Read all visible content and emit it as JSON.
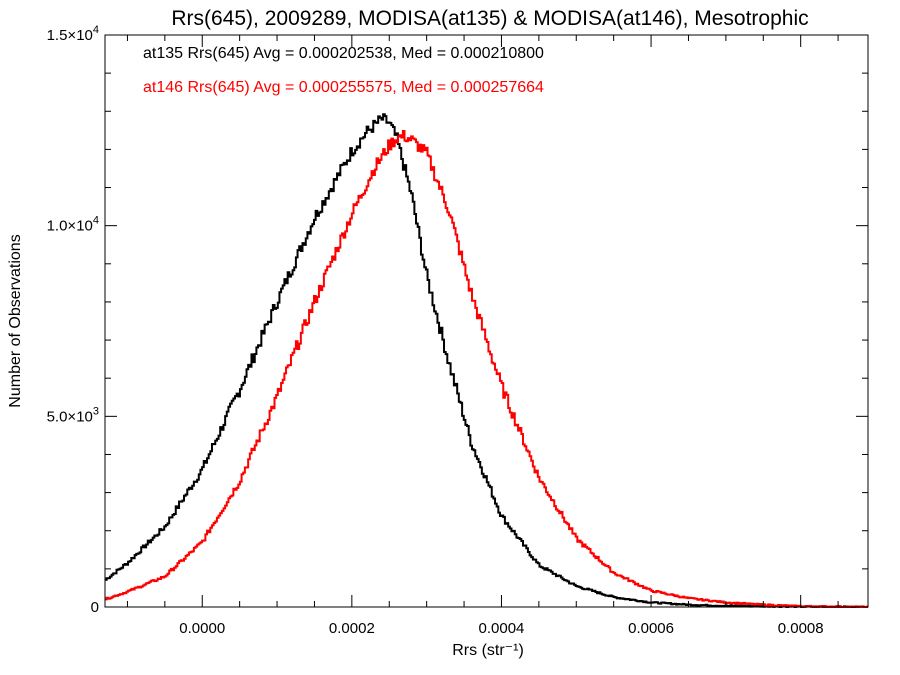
{
  "chart_data": {
    "type": "line",
    "step": true,
    "title": "Rrs(645), 2009289, MODISA(at135) & MODISA(at146), Mesotrophic",
    "xlabel": "Rrs (str⁻¹)",
    "ylabel": "Number of Observations",
    "xlim": [
      -0.00013,
      0.00089
    ],
    "ylim": [
      0,
      15000
    ],
    "x_ticks": [
      0.0,
      0.0002,
      0.0004,
      0.0006,
      0.0008
    ],
    "x_tick_labels": [
      "0.0000",
      "0.0002",
      "0.0004",
      "0.0006",
      "0.0008"
    ],
    "y_ticks": [
      0,
      5000,
      10000,
      15000
    ],
    "y_tick_labels": [
      {
        "mantissa": "0",
        "exp": ""
      },
      {
        "mantissa": "5.0×10",
        "exp": "3"
      },
      {
        "mantissa": "1.0×10",
        "exp": "4"
      },
      {
        "mantissa": "1.5×10",
        "exp": "4"
      }
    ],
    "grid": false,
    "legend_position": "top-left",
    "series": [
      {
        "name": "at135",
        "color": "#000000",
        "stats_label": "at135 Rrs(645) Avg = 0.000202538, Med = 0.000210800",
        "x": [
          -0.00013,
          -0.0001,
          -5e-05,
          0.0,
          5e-05,
          0.0001,
          0.00015,
          0.0002,
          0.00022,
          0.00024,
          0.00025,
          0.00026,
          0.00028,
          0.0003,
          0.00033,
          0.00036,
          0.0004,
          0.00045,
          0.0005,
          0.00055,
          0.0006,
          0.00065,
          0.0007,
          0.0008,
          0.00089
        ],
        "values": [
          700,
          1150,
          2100,
          3600,
          5700,
          8000,
          10200,
          11950,
          12450,
          12800,
          12700,
          12300,
          10800,
          8700,
          6400,
          4300,
          2400,
          1100,
          550,
          260,
          120,
          60,
          30,
          10,
          0
        ]
      },
      {
        "name": "at146",
        "color": "#ff0000",
        "stats_label": "at146 Rrs(645) Avg = 0.000255575, Med = 0.000257664",
        "x": [
          -0.00013,
          -0.0001,
          -5e-05,
          0.0,
          5e-05,
          0.0001,
          0.00015,
          0.0002,
          0.00023,
          0.00025,
          0.00026,
          0.00027,
          0.00028,
          0.0003,
          0.00033,
          0.00036,
          0.0004,
          0.00045,
          0.0005,
          0.00055,
          0.0006,
          0.00065,
          0.0007,
          0.00075,
          0.0008,
          0.00089
        ],
        "values": [
          200,
          400,
          800,
          1700,
          3300,
          5500,
          8000,
          10300,
          11500,
          12100,
          12300,
          12350,
          12250,
          11900,
          10400,
          8200,
          5800,
          3400,
          1800,
          900,
          430,
          230,
          120,
          60,
          20,
          0
        ]
      }
    ]
  }
}
